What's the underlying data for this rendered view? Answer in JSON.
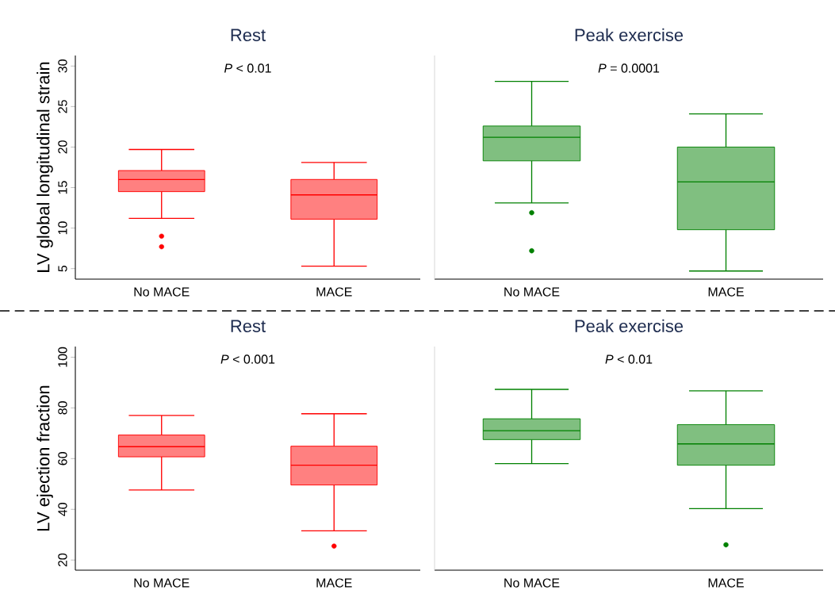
{
  "chart_data": [
    {
      "type": "box",
      "title": "Rest",
      "ylabel": "LV global longitudinal strain",
      "categories": [
        "No MACE",
        "MACE"
      ],
      "color": "#ff0000",
      "annotations": [
        "*P* < 0.01"
      ],
      "ylim": [
        3.7,
        31.3
      ],
      "yticks": [
        5,
        10,
        15,
        20,
        25,
        30
      ],
      "boxes": [
        {
          "low": 11.2,
          "q1": 14.5,
          "median": 16.0,
          "q3": 17.1,
          "high": 19.7,
          "outliers": [
            9.0,
            7.7
          ]
        },
        {
          "low": 5.3,
          "q1": 11.1,
          "median": 14.1,
          "q3": 16.0,
          "high": 18.1
        }
      ]
    },
    {
      "type": "box",
      "title": "Peak exercise",
      "categories": [
        "No MACE",
        "MACE"
      ],
      "color": "#008000",
      "annotations": [
        "*P* = 0.0001"
      ],
      "ylim": [
        3.7,
        31.3
      ],
      "yticks": [
        5,
        10,
        15,
        20,
        25,
        30
      ],
      "tick_labels": "x",
      "boxes": [
        {
          "low": 13.1,
          "q1": 18.3,
          "median": 21.2,
          "q3": 22.6,
          "high": 28.1,
          "outliers": [
            11.9,
            7.2
          ]
        },
        {
          "low": 4.7,
          "q1": 9.8,
          "median": 15.7,
          "q3": 20.0,
          "high": 24.1
        }
      ]
    },
    {
      "type": "box",
      "title": "Rest",
      "ylabel": "LV ejection fraction",
      "categories": [
        "No MACE",
        "MACE"
      ],
      "color": "#ff0000",
      "annotations": [
        "*P* < 0.001"
      ],
      "ylim": [
        16,
        104.2
      ],
      "yticks": [
        20,
        40,
        60,
        80,
        100
      ],
      "boxes": [
        {
          "low": 47.6,
          "q1": 60.7,
          "median": 64.7,
          "q3": 69.3,
          "high": 77.0
        },
        {
          "low": 31.5,
          "q1": 49.6,
          "median": 57.4,
          "q3": 64.9,
          "high": 77.7,
          "outliers": [
            25.5
          ]
        }
      ]
    },
    {
      "type": "box",
      "title": "Peak exercise",
      "categories": [
        "No MACE",
        "MACE"
      ],
      "color": "#008000",
      "annotations": [
        "*P* < 0.01"
      ],
      "ylim": [
        16,
        104.2
      ],
      "yticks": [
        20,
        40,
        60,
        80,
        100
      ],
      "tick_labels": "x",
      "boxes": [
        {
          "low": 58.0,
          "q1": 67.5,
          "median": 71.0,
          "q3": 75.7,
          "high": 87.3
        },
        {
          "low": 40.3,
          "q1": 57.4,
          "median": 65.8,
          "q3": 73.4,
          "high": 86.7,
          "outliers": [
            26.0
          ]
        }
      ]
    }
  ]
}
